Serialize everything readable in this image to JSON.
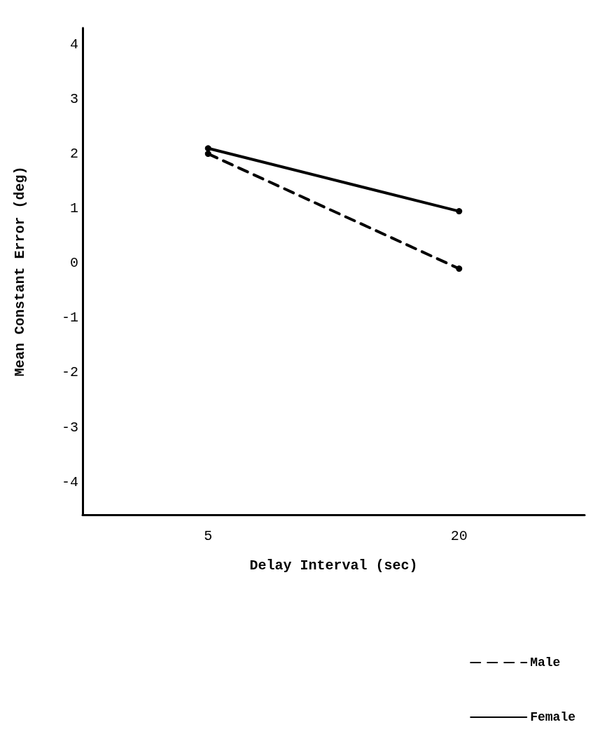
{
  "chart_data": {
    "type": "line",
    "xlabel": "Delay Interval (sec)",
    "ylabel": "Mean Constant Error (deg)",
    "categories": [
      "5",
      "20"
    ],
    "series": [
      {
        "name": "Male",
        "color": "#000000",
        "values": [
          2.0,
          -0.1
        ],
        "line_style": "dashed"
      },
      {
        "name": "Female",
        "color": "#000000",
        "values": [
          2.1,
          0.95
        ],
        "line_style": "solid"
      }
    ],
    "ylim": [
      -4.6,
      4.3
    ],
    "yticks": [
      -4,
      -3,
      -2,
      -1,
      0,
      1,
      2,
      3,
      4
    ],
    "grid": false,
    "legend": "bottom right",
    "marker": "circle"
  }
}
